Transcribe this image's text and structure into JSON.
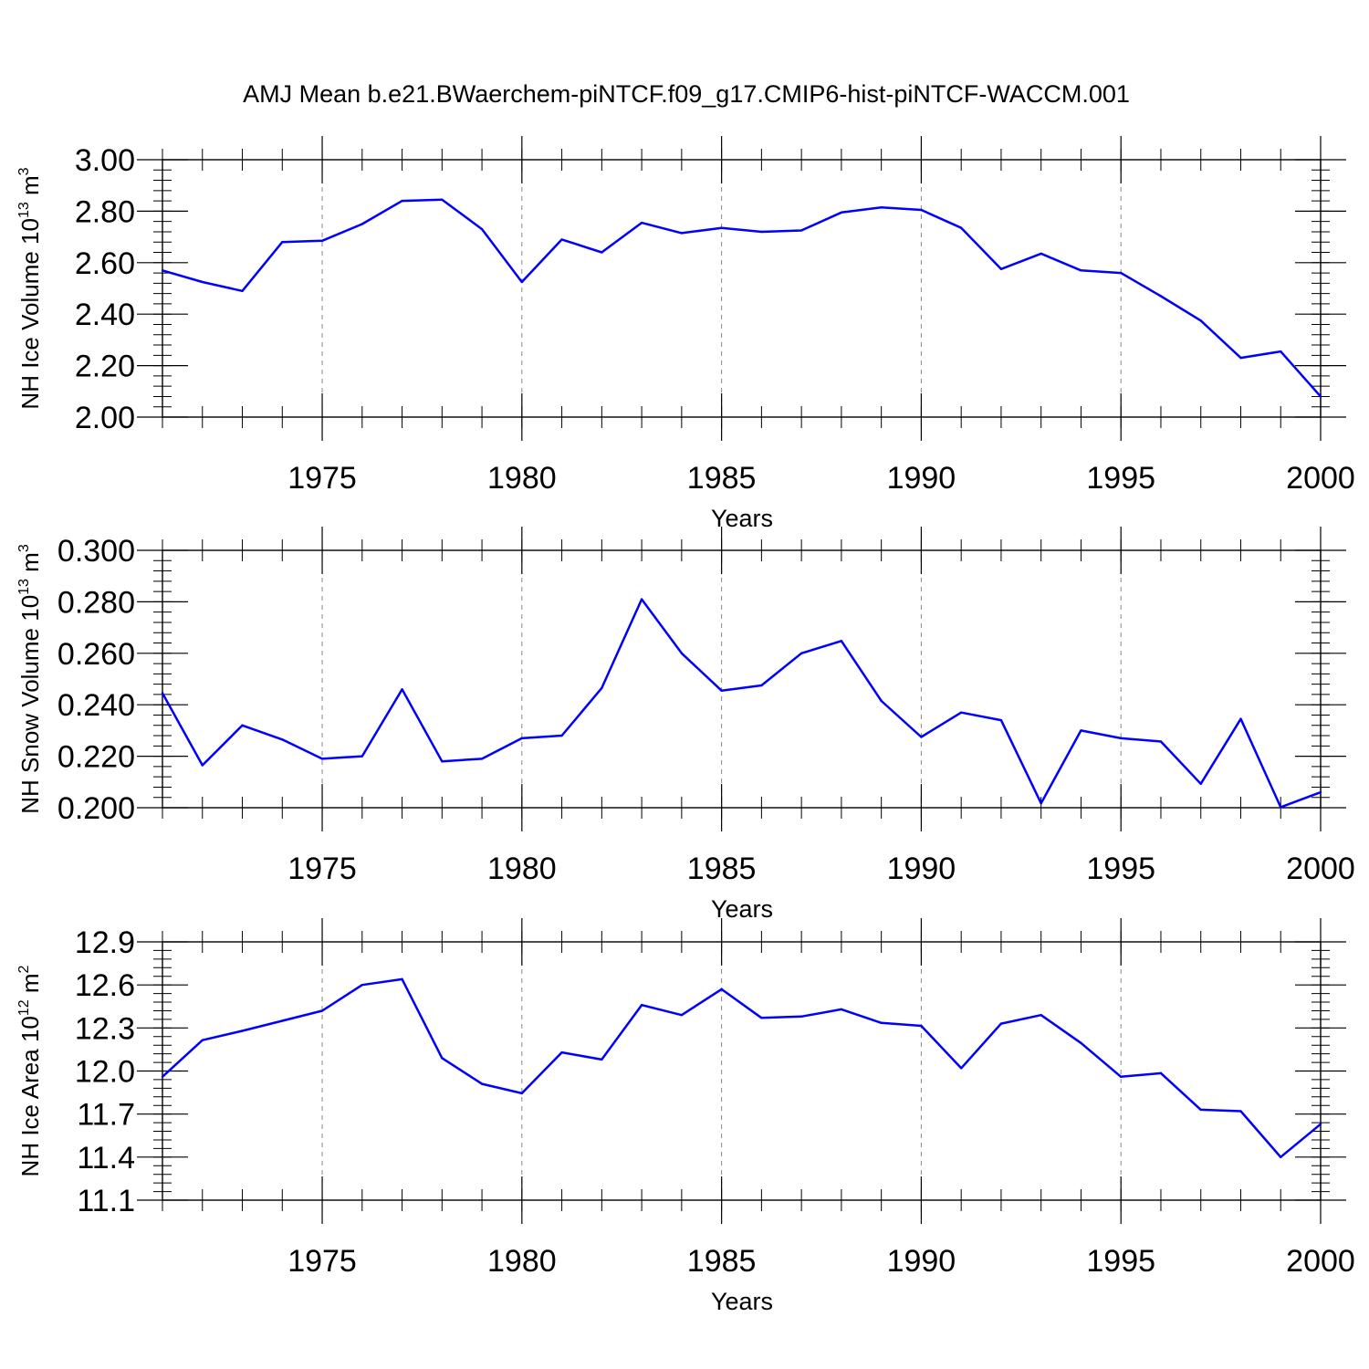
{
  "title": "AMJ Mean b.e21.BWaerchem-piNTCF.f09_g17.CMIP6-hist-piNTCF-WACCM.001",
  "colors": {
    "line": "#0000ff",
    "axis": "#000000",
    "grid": "#888888"
  },
  "chart_data": [
    {
      "type": "line",
      "ylabel": "NH Ice Volume 10",
      "ylabel_exp": "13",
      "ylabel_unit": " m",
      "ylabel_unit_exp": "3",
      "xlabel": "Years",
      "xlim": [
        1971,
        2000
      ],
      "ylim": [
        2.0,
        3.0
      ],
      "yticks": [
        "2.00",
        "2.20",
        "2.40",
        "2.60",
        "2.80",
        "3.00"
      ],
      "xticks": [
        "1975",
        "1980",
        "1985",
        "1990",
        "1995",
        "2000"
      ],
      "grid": "vertical-dashed",
      "x": [
        1971,
        1972,
        1973,
        1974,
        1975,
        1976,
        1977,
        1978,
        1979,
        1980,
        1981,
        1982,
        1983,
        1984,
        1985,
        1986,
        1987,
        1988,
        1989,
        1990,
        1991,
        1992,
        1993,
        1994,
        1995,
        1996,
        1997,
        1998,
        1999,
        2000
      ],
      "values": [
        2.57,
        2.525,
        2.49,
        2.68,
        2.685,
        2.75,
        2.84,
        2.845,
        2.73,
        2.525,
        2.69,
        2.64,
        2.755,
        2.715,
        2.735,
        2.72,
        2.725,
        2.795,
        2.815,
        2.805,
        2.735,
        2.575,
        2.635,
        2.57,
        2.56,
        2.47,
        2.375,
        2.23,
        2.255,
        2.08
      ]
    },
    {
      "type": "line",
      "ylabel": "NH Snow Volume 10",
      "ylabel_exp": "13",
      "ylabel_unit": " m",
      "ylabel_unit_exp": "3",
      "xlabel": "Years",
      "xlim": [
        1971,
        2000
      ],
      "ylim": [
        0.2,
        0.3
      ],
      "yticks": [
        "0.200",
        "0.220",
        "0.240",
        "0.260",
        "0.280",
        "0.300"
      ],
      "xticks": [
        "1975",
        "1980",
        "1985",
        "1990",
        "1995",
        "2000"
      ],
      "grid": "vertical-dashed",
      "x": [
        1971,
        1972,
        1973,
        1974,
        1975,
        1976,
        1977,
        1978,
        1979,
        1980,
        1981,
        1982,
        1983,
        1984,
        1985,
        1986,
        1987,
        1988,
        1989,
        1990,
        1991,
        1992,
        1993,
        1994,
        1995,
        1996,
        1997,
        1998,
        1999,
        2000
      ],
      "values": [
        0.2445,
        0.2165,
        0.232,
        0.2265,
        0.219,
        0.22,
        0.246,
        0.218,
        0.219,
        0.227,
        0.228,
        0.2465,
        0.281,
        0.26,
        0.2455,
        0.2475,
        0.26,
        0.2648,
        0.2415,
        0.2275,
        0.237,
        0.234,
        0.2017,
        0.23,
        0.227,
        0.2257,
        0.2093,
        0.2345,
        0.2002,
        0.206
      ]
    },
    {
      "type": "line",
      "ylabel": "NH Ice Area 10",
      "ylabel_exp": "12",
      "ylabel_unit": " m",
      "ylabel_unit_exp": "2",
      "xlabel": "Years",
      "xlim": [
        1971,
        2000
      ],
      "ylim": [
        11.1,
        12.9
      ],
      "yticks": [
        "11.1",
        "11.4",
        "11.7",
        "12.0",
        "12.3",
        "12.6",
        "12.9"
      ],
      "xticks": [
        "1975",
        "1980",
        "1985",
        "1990",
        "1995",
        "2000"
      ],
      "grid": "vertical-dashed",
      "x": [
        1971,
        1972,
        1973,
        1974,
        1975,
        1976,
        1977,
        1978,
        1979,
        1980,
        1981,
        1982,
        1983,
        1984,
        1985,
        1986,
        1987,
        1988,
        1989,
        1990,
        1991,
        1992,
        1993,
        1994,
        1995,
        1996,
        1997,
        1998,
        1999,
        2000
      ],
      "values": [
        11.96,
        12.215,
        12.28,
        12.35,
        12.42,
        12.6,
        12.64,
        12.09,
        11.91,
        11.845,
        12.13,
        12.08,
        12.46,
        12.39,
        12.57,
        12.37,
        12.38,
        12.43,
        12.335,
        12.315,
        12.02,
        12.33,
        12.39,
        12.195,
        11.96,
        11.985,
        11.73,
        11.72,
        11.4,
        11.63
      ]
    }
  ]
}
